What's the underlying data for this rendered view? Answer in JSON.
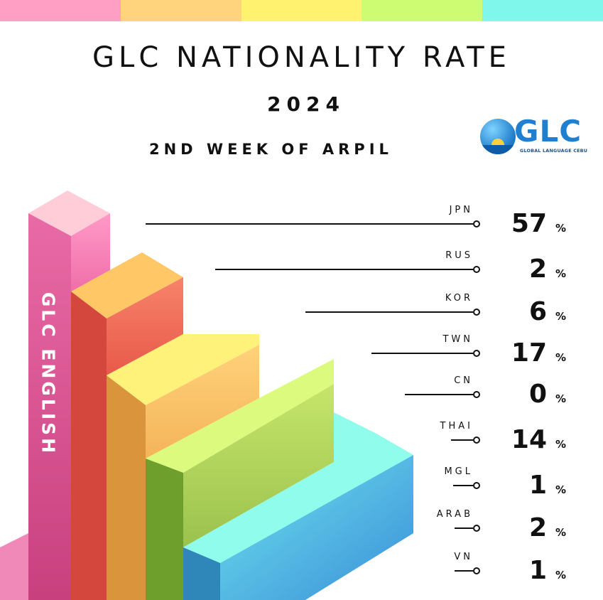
{
  "header": {
    "title": "GLC NATIONALITY RATE",
    "year": "2024",
    "subtitle": "2ND WEEK OF ARPIL",
    "top_stripe_colors": [
      "#ff9fc4",
      "#ffd47c",
      "#fff26e",
      "#cdfc72",
      "#7ff7ea"
    ]
  },
  "logo": {
    "text": "GLC",
    "tagline": "GLOBAL LANGUAGE CEBU",
    "icon": "globe-island-icon"
  },
  "vertical_label": "GLC ENGLISH",
  "chart_data": {
    "type": "bar",
    "categories": [
      "JPN",
      "RUS",
      "KOR",
      "TWN",
      "CN",
      "THAI",
      "MGL",
      "ARAB",
      "VN"
    ],
    "values": [
      57,
      2,
      6,
      17,
      0,
      14,
      1,
      2,
      1
    ],
    "unit": "%",
    "title": "GLC NATIONALITY RATE",
    "legend": "none",
    "grid": false,
    "rows": [
      {
        "code": "JPN",
        "value": "57",
        "unit": "%"
      },
      {
        "code": "RUS",
        "value": "2",
        "unit": "%"
      },
      {
        "code": "KOR",
        "value": "6",
        "unit": "%"
      },
      {
        "code": "TWN",
        "value": "17",
        "unit": "%"
      },
      {
        "code": "CN",
        "value": "0",
        "unit": "%"
      },
      {
        "code": "THAI",
        "value": "14",
        "unit": "%"
      },
      {
        "code": "MGL",
        "value": "1",
        "unit": "%"
      },
      {
        "code": "ARAB",
        "value": "2",
        "unit": "%"
      },
      {
        "code": "VN",
        "value": "1",
        "unit": "%"
      }
    ]
  }
}
